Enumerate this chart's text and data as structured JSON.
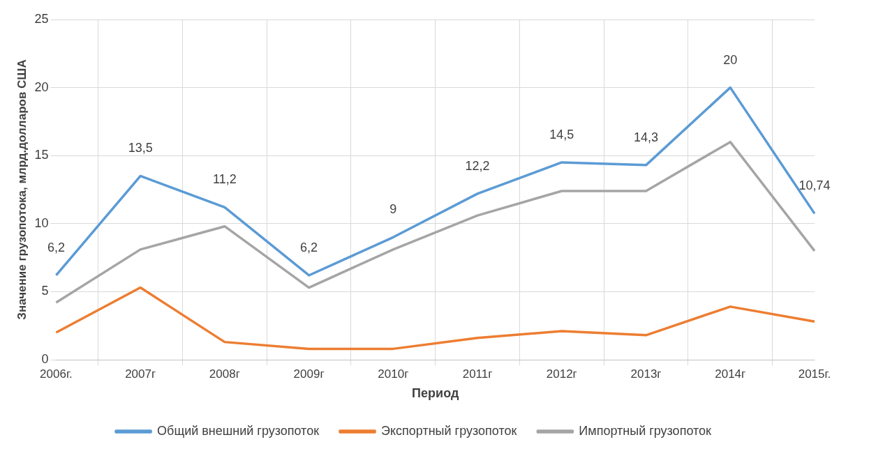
{
  "chart_data": {
    "type": "line",
    "xlabel": "Период",
    "ylabel": "Значение грузопотока, млрд.долларов США",
    "categories": [
      "2006г.",
      "2007г",
      "2008г",
      "2009г",
      "2010г",
      "2011г",
      "2012г",
      "2013г",
      "2014г",
      "2015г."
    ],
    "series": [
      {
        "name": "Общий внешний грузопоток",
        "color": "#5b9bd5",
        "values": [
          6.2,
          13.5,
          11.2,
          6.2,
          9,
          12.2,
          14.5,
          14.3,
          20,
          10.74
        ],
        "value_labels": [
          "6,2",
          "13,5",
          "11,2",
          "6,2",
          "9",
          "12,2",
          "14,5",
          "14,3",
          "20",
          "10,74"
        ]
      },
      {
        "name": "Экспортный грузопоток",
        "color": "#ed7d31",
        "values": [
          2.0,
          5.3,
          1.3,
          0.8,
          0.8,
          1.6,
          2.1,
          1.8,
          3.9,
          2.8
        ]
      },
      {
        "name": "Импортный грузопоток",
        "color": "#a5a5a5",
        "values": [
          4.2,
          8.1,
          9.8,
          5.3,
          8.1,
          10.6,
          12.4,
          12.4,
          16.0,
          8.0
        ]
      }
    ],
    "ylim": [
      0,
      25
    ],
    "yticks": [
      0,
      5,
      10,
      15,
      20,
      25
    ],
    "grid": true,
    "legend": "bottom",
    "marker": "none",
    "line_style": "solid"
  }
}
